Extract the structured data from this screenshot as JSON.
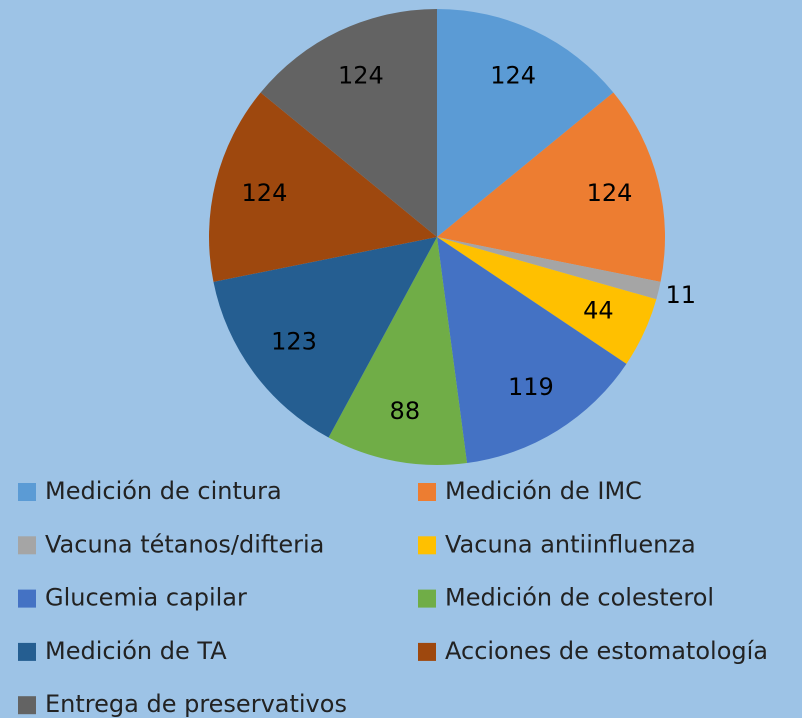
{
  "chart_data": {
    "type": "pie",
    "categories": [
      "Medición de cintura",
      "Medición de IMC",
      "Vacuna tétanos/difteria",
      "Vacuna antiinfluenza",
      "Glucemia capilar",
      "Medición de colesterol",
      "Medición de TA",
      "Acciones de estomatología",
      "Entrega de preservativos"
    ],
    "values": [
      124,
      124,
      11,
      44,
      119,
      88,
      123,
      124,
      124
    ],
    "colors": [
      "#5b9bd5",
      "#ed7d31",
      "#a5a5a5",
      "#ffc000",
      "#4472c4",
      "#70ad47",
      "#255e91",
      "#9e480e",
      "#636363"
    ],
    "legend": "bottom"
  }
}
